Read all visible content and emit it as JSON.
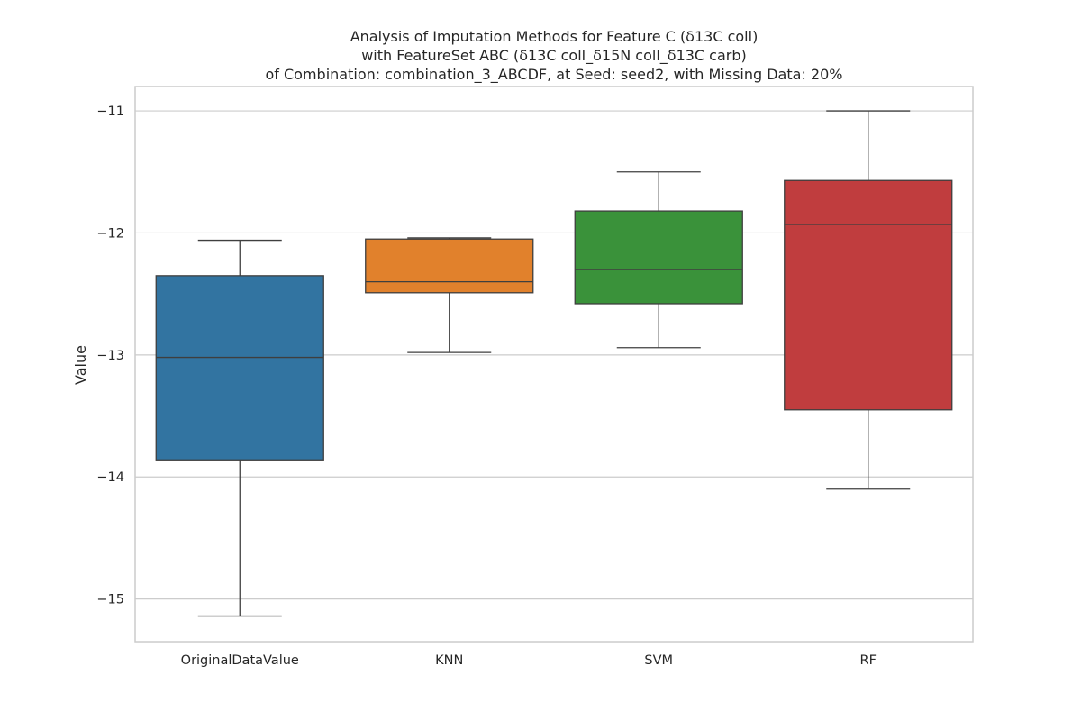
{
  "chart_data": {
    "type": "box",
    "title_lines": [
      "Analysis of Imputation Methods for Feature C (δ13C coll)",
      "with FeatureSet ABC (δ13C coll_δ15N coll_δ13C carb)",
      "of Combination: combination_3_ABCDF, at Seed: seed2, with Missing Data: 20%"
    ],
    "xlabel": "",
    "ylabel": "Value",
    "ylim": [
      -15.35,
      -10.8
    ],
    "yticks": [
      -11,
      -12,
      -13,
      -14,
      -15
    ],
    "ytick_labels": [
      "−11",
      "−12",
      "−13",
      "−14",
      "−15"
    ],
    "grid": true,
    "categories": [
      "OriginalDataValue",
      "KNN",
      "SVM",
      "RF"
    ],
    "series": [
      {
        "category": "OriginalDataValue",
        "color": "#3274a1",
        "whisker_low": -15.14,
        "q1": -13.86,
        "median": -13.02,
        "q3": -12.35,
        "whisker_high": -12.06
      },
      {
        "category": "KNN",
        "color": "#e1812c",
        "whisker_low": -12.98,
        "q1": -12.49,
        "median": -12.4,
        "q3": -12.05,
        "whisker_high": -12.04
      },
      {
        "category": "SVM",
        "color": "#3a923a",
        "whisker_low": -12.94,
        "q1": -12.58,
        "median": -12.3,
        "q3": -11.82,
        "whisker_high": -11.5
      },
      {
        "category": "RF",
        "color": "#c03d3e",
        "whisker_low": -14.1,
        "q1": -13.45,
        "median": -11.93,
        "q3": -11.57,
        "whisker_high": -11.0
      }
    ]
  }
}
